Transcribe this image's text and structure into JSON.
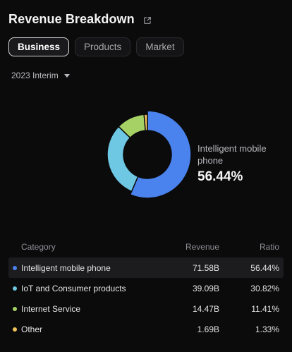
{
  "header": {
    "title": "Revenue Breakdown",
    "share_icon": "external-link-icon"
  },
  "tabs": [
    {
      "label": "Business",
      "active": true
    },
    {
      "label": "Products",
      "active": false
    },
    {
      "label": "Market",
      "active": false
    }
  ],
  "period": {
    "label": "2023 Interim",
    "icon": "caret-down-icon"
  },
  "callout": {
    "name": "Intelligent mobile phone",
    "pct": "56.44%"
  },
  "table": {
    "headers": {
      "category": "Category",
      "revenue": "Revenue",
      "ratio": "Ratio"
    },
    "rows": [
      {
        "category": "Intelligent mobile phone",
        "revenue": "71.58B",
        "ratio": "56.44%",
        "color": "#4a82ee",
        "highlight": true
      },
      {
        "category": "IoT and Consumer products",
        "revenue": "39.09B",
        "ratio": "30.82%",
        "color": "#6ec7e3",
        "highlight": false
      },
      {
        "category": "Internet Service",
        "revenue": "14.47B",
        "ratio": "11.41%",
        "color": "#a6d265",
        "highlight": false
      },
      {
        "category": "Other",
        "revenue": "1.69B",
        "ratio": "1.33%",
        "color": "#f0c35b",
        "highlight": false
      }
    ]
  },
  "chart_data": {
    "type": "pie",
    "categories": [
      "Intelligent mobile phone",
      "IoT and Consumer products",
      "Internet Service",
      "Other"
    ],
    "values": [
      56.44,
      30.82,
      11.41,
      1.33
    ],
    "colors": [
      "#4a82ee",
      "#6ec7e3",
      "#a6d265",
      "#f0c35b"
    ],
    "donut": true,
    "selected": "Intelligent mobile phone"
  }
}
